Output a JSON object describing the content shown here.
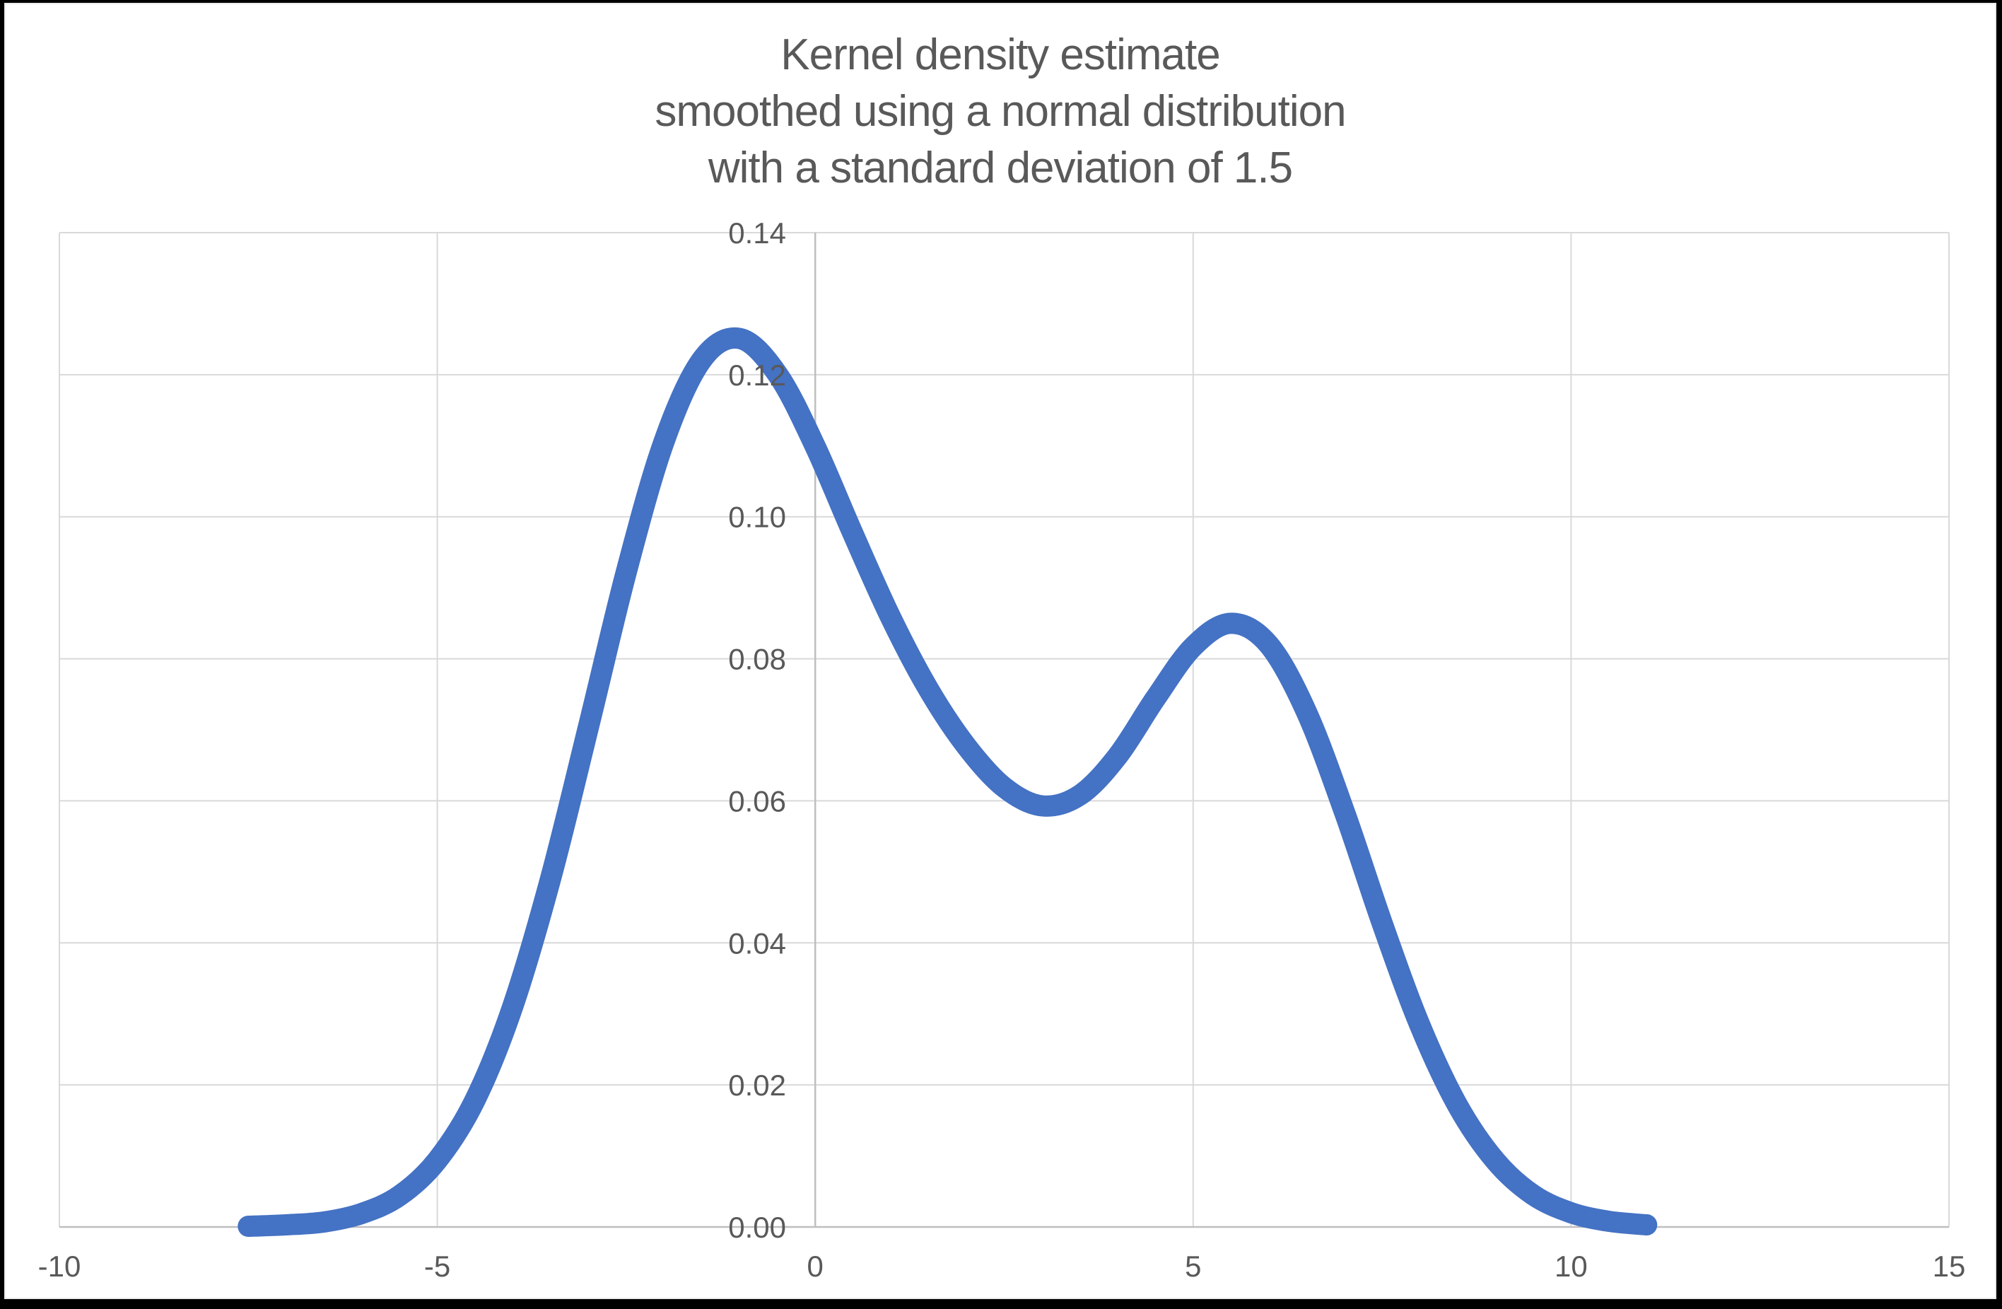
{
  "window": {
    "background_color": "#ffffff",
    "frame_color": "#000000"
  },
  "chart_data": {
    "type": "line",
    "title": "Kernel density estimate smoothed using a normal distribution with a standard deviation of 1.5",
    "title_lines": [
      "Kernel density estimate",
      "smoothed using a normal distribution",
      "with a standard deviation of 1.5"
    ],
    "xlabel": "",
    "ylabel": "",
    "xlim": [
      -10,
      15
    ],
    "ylim": [
      0,
      0.14
    ],
    "grid": true,
    "legend_position": "none",
    "x_ticks": [
      {
        "v": -10,
        "label": "-10"
      },
      {
        "v": -5,
        "label": "-5"
      },
      {
        "v": 0,
        "label": "0"
      },
      {
        "v": 5,
        "label": "5"
      },
      {
        "v": 10,
        "label": "10"
      },
      {
        "v": 15,
        "label": "15"
      }
    ],
    "y_ticks": [
      {
        "v": 0.0,
        "label": "0.00"
      },
      {
        "v": 0.02,
        "label": "0.02"
      },
      {
        "v": 0.04,
        "label": "0.04"
      },
      {
        "v": 0.06,
        "label": "0.06"
      },
      {
        "v": 0.08,
        "label": "0.08"
      },
      {
        "v": 0.1,
        "label": "0.10"
      },
      {
        "v": 0.12,
        "label": "0.12"
      },
      {
        "v": 0.14,
        "label": "0.14"
      }
    ],
    "colors": {
      "line": "#4472C4",
      "gridline": "#D9D9D9",
      "axis_line": "#BFBFBF",
      "tick_text": "#595959",
      "title_text": "#595959"
    },
    "series": [
      {
        "name": "Kernel density estimate",
        "color": "#4472C4",
        "stroke_width": 30,
        "points": [
          [
            -7.5,
            0.0001
          ],
          [
            -7.0,
            0.0003
          ],
          [
            -6.5,
            0.0007
          ],
          [
            -6.0,
            0.0019
          ],
          [
            -5.5,
            0.0044
          ],
          [
            -5.0,
            0.0094
          ],
          [
            -4.5,
            0.0179
          ],
          [
            -4.0,
            0.0311
          ],
          [
            -3.5,
            0.0491
          ],
          [
            -3.0,
            0.0704
          ],
          [
            -2.5,
            0.0922
          ],
          [
            -2.0,
            0.1106
          ],
          [
            -1.5,
            0.1221
          ],
          [
            -1.0,
            0.1251
          ],
          [
            -0.5,
            0.1201
          ],
          [
            0.0,
            0.1099
          ],
          [
            0.5,
            0.0976
          ],
          [
            1.0,
            0.0858
          ],
          [
            1.5,
            0.0757
          ],
          [
            2.0,
            0.0677
          ],
          [
            2.5,
            0.0619
          ],
          [
            3.0,
            0.0593
          ],
          [
            3.5,
            0.0608
          ],
          [
            4.0,
            0.0663
          ],
          [
            4.5,
            0.0744
          ],
          [
            5.0,
            0.0817
          ],
          [
            5.5,
            0.085
          ],
          [
            6.0,
            0.082
          ],
          [
            6.5,
            0.0725
          ],
          [
            7.0,
            0.0585
          ],
          [
            7.5,
            0.0428
          ],
          [
            8.0,
            0.0284
          ],
          [
            8.5,
            0.0171
          ],
          [
            9.0,
            0.0093
          ],
          [
            9.5,
            0.0045
          ],
          [
            10.0,
            0.002
          ],
          [
            10.5,
            0.0008
          ],
          [
            11.0,
            0.0003
          ]
        ]
      }
    ]
  }
}
